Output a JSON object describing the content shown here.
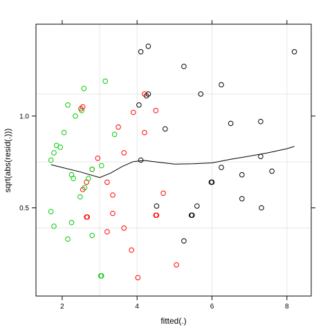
{
  "chart_data": {
    "type": "scatter",
    "xlabel": "fitted(.)",
    "ylabel": "sqrt(abs(resid(.)))",
    "xlim": [
      1.3,
      8.65
    ],
    "ylim": [
      0.02,
      1.5
    ],
    "x_ticks": [
      2,
      4,
      6,
      8
    ],
    "y_ticks": [
      0.5,
      1.0
    ],
    "x_tick_labels": [
      "2",
      "4",
      "6",
      "8"
    ],
    "y_tick_labels": [
      "0.5",
      "1.0"
    ],
    "grid": true,
    "grid_x": [
      3,
      4,
      6,
      8
    ],
    "grid_y": [
      0.39,
      0.75,
      1.12
    ],
    "colors": {
      "black": "#000000",
      "red": "#ff0000",
      "green": "#00cc00",
      "grid": "#e6e6e6",
      "smooth": "#000000"
    },
    "series": [
      {
        "color": "black",
        "points": [
          [
            4.1,
            1.35
          ],
          [
            4.3,
            1.38
          ],
          [
            5.25,
            1.27
          ],
          [
            8.2,
            1.35
          ],
          [
            6.25,
            1.17
          ],
          [
            5.7,
            1.12
          ],
          [
            4.3,
            1.12
          ],
          [
            4.25,
            1.11
          ],
          [
            4.05,
            1.06
          ],
          [
            6.5,
            0.96
          ],
          [
            7.3,
            0.97
          ],
          [
            4.75,
            0.93
          ],
          [
            4.1,
            0.76
          ],
          [
            6.25,
            0.72
          ],
          [
            7.3,
            0.78
          ],
          [
            7.6,
            0.7
          ],
          [
            6.8,
            0.68
          ],
          [
            6.0,
            0.64
          ],
          [
            5.98,
            0.64
          ],
          [
            6.8,
            0.55
          ],
          [
            4.52,
            0.51
          ],
          [
            5.6,
            0.51
          ],
          [
            7.32,
            0.5
          ],
          [
            5.45,
            0.46
          ],
          [
            5.47,
            0.46
          ],
          [
            5.25,
            0.32
          ]
        ]
      },
      {
        "color": "red",
        "points": [
          [
            4.2,
            1.12
          ],
          [
            2.55,
            1.05
          ],
          [
            2.5,
            1.04
          ],
          [
            4.5,
            1.03
          ],
          [
            3.9,
            1.02
          ],
          [
            3.5,
            0.94
          ],
          [
            4.2,
            0.91
          ],
          [
            3.65,
            0.8
          ],
          [
            2.95,
            0.77
          ],
          [
            2.8,
            0.71
          ],
          [
            3.2,
            0.64
          ],
          [
            2.65,
            0.64
          ],
          [
            2.55,
            0.6
          ],
          [
            3.35,
            0.57
          ],
          [
            4.7,
            0.58
          ],
          [
            3.35,
            0.47
          ],
          [
            4.5,
            0.46
          ],
          [
            4.52,
            0.46
          ],
          [
            2.65,
            0.45
          ],
          [
            2.67,
            0.45
          ],
          [
            3.65,
            0.39
          ],
          [
            3.2,
            0.37
          ],
          [
            3.85,
            0.27
          ],
          [
            5.05,
            0.19
          ],
          [
            4.02,
            0.12
          ]
        ]
      },
      {
        "color": "green",
        "points": [
          [
            3.15,
            1.19
          ],
          [
            2.58,
            1.15
          ],
          [
            2.15,
            1.06
          ],
          [
            2.52,
            1.03
          ],
          [
            2.35,
            1.0
          ],
          [
            3.4,
            0.9
          ],
          [
            2.05,
            0.91
          ],
          [
            1.85,
            0.84
          ],
          [
            1.95,
            0.83
          ],
          [
            1.78,
            0.8
          ],
          [
            1.7,
            0.76
          ],
          [
            3.05,
            0.73
          ],
          [
            2.8,
            0.71
          ],
          [
            2.25,
            0.68
          ],
          [
            2.3,
            0.66
          ],
          [
            2.7,
            0.66
          ],
          [
            2.6,
            0.61
          ],
          [
            2.48,
            0.56
          ],
          [
            1.7,
            0.48
          ],
          [
            2.25,
            0.42
          ],
          [
            1.78,
            0.4
          ],
          [
            2.8,
            0.35
          ],
          [
            2.15,
            0.33
          ],
          [
            3.05,
            0.13
          ],
          [
            3.03,
            0.13
          ]
        ]
      }
    ],
    "smooth_line": [
      [
        1.7,
        0.735
      ],
      [
        2.0,
        0.72
      ],
      [
        2.5,
        0.695
      ],
      [
        3.0,
        0.665
      ],
      [
        3.3,
        0.69
      ],
      [
        3.6,
        0.725
      ],
      [
        3.9,
        0.752
      ],
      [
        4.2,
        0.758
      ],
      [
        4.6,
        0.748
      ],
      [
        5.0,
        0.738
      ],
      [
        5.5,
        0.74
      ],
      [
        6.0,
        0.745
      ],
      [
        6.5,
        0.765
      ],
      [
        7.0,
        0.782
      ],
      [
        7.5,
        0.8
      ],
      [
        8.0,
        0.822
      ],
      [
        8.2,
        0.835
      ]
    ]
  }
}
